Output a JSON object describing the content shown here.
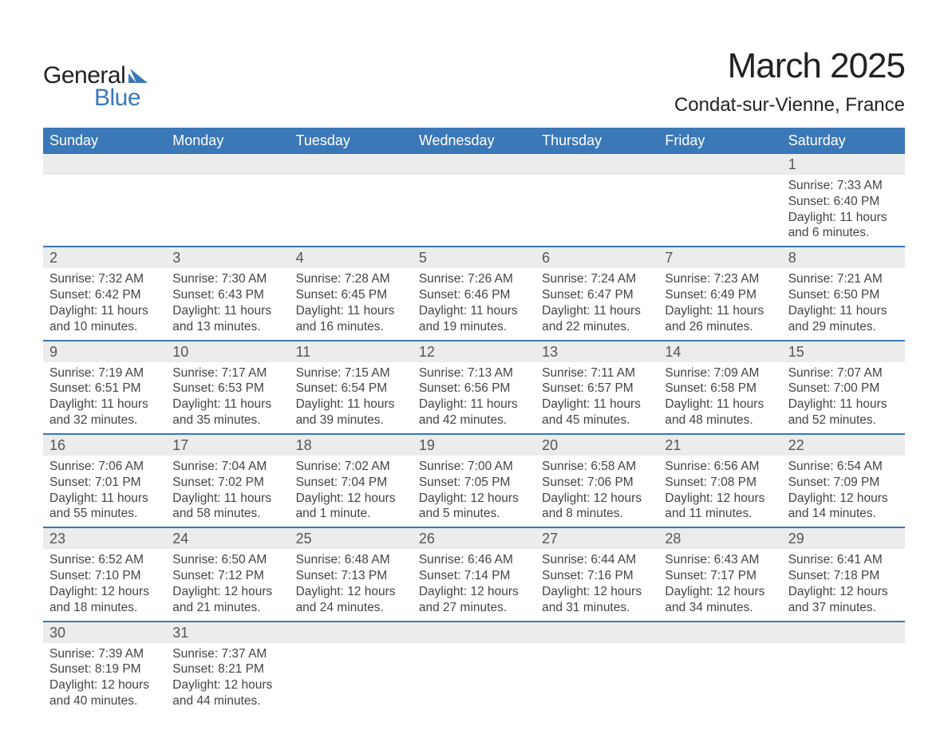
{
  "brand": {
    "part1": "General",
    "part2": "Blue",
    "logo_color": "#3b78b8"
  },
  "title": "March 2025",
  "location": "Condat-sur-Vienne, France",
  "colors": {
    "header_bg": "#3b78b8",
    "header_text": "#ffffff",
    "daynum_bg": "#ececec",
    "daynum_text": "#555555",
    "body_text": "#444444",
    "divider": "#3b78b8",
    "background": "#ffffff"
  },
  "typography": {
    "title_fontsize": 44,
    "location_fontsize": 24,
    "dayheader_fontsize": 18,
    "daynum_fontsize": 18,
    "detail_fontsize": 15.5
  },
  "day_headers": [
    "Sunday",
    "Monday",
    "Tuesday",
    "Wednesday",
    "Thursday",
    "Friday",
    "Saturday"
  ],
  "labels": {
    "sunrise": "Sunrise:",
    "sunset": "Sunset:",
    "daylight": "Daylight:"
  },
  "weeks": [
    [
      null,
      null,
      null,
      null,
      null,
      null,
      {
        "day": "1",
        "sunrise": "7:33 AM",
        "sunset": "6:40 PM",
        "daylight_l1": "11 hours",
        "daylight_l2": "and 6 minutes."
      }
    ],
    [
      {
        "day": "2",
        "sunrise": "7:32 AM",
        "sunset": "6:42 PM",
        "daylight_l1": "11 hours",
        "daylight_l2": "and 10 minutes."
      },
      {
        "day": "3",
        "sunrise": "7:30 AM",
        "sunset": "6:43 PM",
        "daylight_l1": "11 hours",
        "daylight_l2": "and 13 minutes."
      },
      {
        "day": "4",
        "sunrise": "7:28 AM",
        "sunset": "6:45 PM",
        "daylight_l1": "11 hours",
        "daylight_l2": "and 16 minutes."
      },
      {
        "day": "5",
        "sunrise": "7:26 AM",
        "sunset": "6:46 PM",
        "daylight_l1": "11 hours",
        "daylight_l2": "and 19 minutes."
      },
      {
        "day": "6",
        "sunrise": "7:24 AM",
        "sunset": "6:47 PM",
        "daylight_l1": "11 hours",
        "daylight_l2": "and 22 minutes."
      },
      {
        "day": "7",
        "sunrise": "7:23 AM",
        "sunset": "6:49 PM",
        "daylight_l1": "11 hours",
        "daylight_l2": "and 26 minutes."
      },
      {
        "day": "8",
        "sunrise": "7:21 AM",
        "sunset": "6:50 PM",
        "daylight_l1": "11 hours",
        "daylight_l2": "and 29 minutes."
      }
    ],
    [
      {
        "day": "9",
        "sunrise": "7:19 AM",
        "sunset": "6:51 PM",
        "daylight_l1": "11 hours",
        "daylight_l2": "and 32 minutes."
      },
      {
        "day": "10",
        "sunrise": "7:17 AM",
        "sunset": "6:53 PM",
        "daylight_l1": "11 hours",
        "daylight_l2": "and 35 minutes."
      },
      {
        "day": "11",
        "sunrise": "7:15 AM",
        "sunset": "6:54 PM",
        "daylight_l1": "11 hours",
        "daylight_l2": "and 39 minutes."
      },
      {
        "day": "12",
        "sunrise": "7:13 AM",
        "sunset": "6:56 PM",
        "daylight_l1": "11 hours",
        "daylight_l2": "and 42 minutes."
      },
      {
        "day": "13",
        "sunrise": "7:11 AM",
        "sunset": "6:57 PM",
        "daylight_l1": "11 hours",
        "daylight_l2": "and 45 minutes."
      },
      {
        "day": "14",
        "sunrise": "7:09 AM",
        "sunset": "6:58 PM",
        "daylight_l1": "11 hours",
        "daylight_l2": "and 48 minutes."
      },
      {
        "day": "15",
        "sunrise": "7:07 AM",
        "sunset": "7:00 PM",
        "daylight_l1": "11 hours",
        "daylight_l2": "and 52 minutes."
      }
    ],
    [
      {
        "day": "16",
        "sunrise": "7:06 AM",
        "sunset": "7:01 PM",
        "daylight_l1": "11 hours",
        "daylight_l2": "and 55 minutes."
      },
      {
        "day": "17",
        "sunrise": "7:04 AM",
        "sunset": "7:02 PM",
        "daylight_l1": "11 hours",
        "daylight_l2": "and 58 minutes."
      },
      {
        "day": "18",
        "sunrise": "7:02 AM",
        "sunset": "7:04 PM",
        "daylight_l1": "12 hours",
        "daylight_l2": "and 1 minute."
      },
      {
        "day": "19",
        "sunrise": "7:00 AM",
        "sunset": "7:05 PM",
        "daylight_l1": "12 hours",
        "daylight_l2": "and 5 minutes."
      },
      {
        "day": "20",
        "sunrise": "6:58 AM",
        "sunset": "7:06 PM",
        "daylight_l1": "12 hours",
        "daylight_l2": "and 8 minutes."
      },
      {
        "day": "21",
        "sunrise": "6:56 AM",
        "sunset": "7:08 PM",
        "daylight_l1": "12 hours",
        "daylight_l2": "and 11 minutes."
      },
      {
        "day": "22",
        "sunrise": "6:54 AM",
        "sunset": "7:09 PM",
        "daylight_l1": "12 hours",
        "daylight_l2": "and 14 minutes."
      }
    ],
    [
      {
        "day": "23",
        "sunrise": "6:52 AM",
        "sunset": "7:10 PM",
        "daylight_l1": "12 hours",
        "daylight_l2": "and 18 minutes."
      },
      {
        "day": "24",
        "sunrise": "6:50 AM",
        "sunset": "7:12 PM",
        "daylight_l1": "12 hours",
        "daylight_l2": "and 21 minutes."
      },
      {
        "day": "25",
        "sunrise": "6:48 AM",
        "sunset": "7:13 PM",
        "daylight_l1": "12 hours",
        "daylight_l2": "and 24 minutes."
      },
      {
        "day": "26",
        "sunrise": "6:46 AM",
        "sunset": "7:14 PM",
        "daylight_l1": "12 hours",
        "daylight_l2": "and 27 minutes."
      },
      {
        "day": "27",
        "sunrise": "6:44 AM",
        "sunset": "7:16 PM",
        "daylight_l1": "12 hours",
        "daylight_l2": "and 31 minutes."
      },
      {
        "day": "28",
        "sunrise": "6:43 AM",
        "sunset": "7:17 PM",
        "daylight_l1": "12 hours",
        "daylight_l2": "and 34 minutes."
      },
      {
        "day": "29",
        "sunrise": "6:41 AM",
        "sunset": "7:18 PM",
        "daylight_l1": "12 hours",
        "daylight_l2": "and 37 minutes."
      }
    ],
    [
      {
        "day": "30",
        "sunrise": "7:39 AM",
        "sunset": "8:19 PM",
        "daylight_l1": "12 hours",
        "daylight_l2": "and 40 minutes."
      },
      {
        "day": "31",
        "sunrise": "7:37 AM",
        "sunset": "8:21 PM",
        "daylight_l1": "12 hours",
        "daylight_l2": "and 44 minutes."
      },
      null,
      null,
      null,
      null,
      null
    ]
  ]
}
